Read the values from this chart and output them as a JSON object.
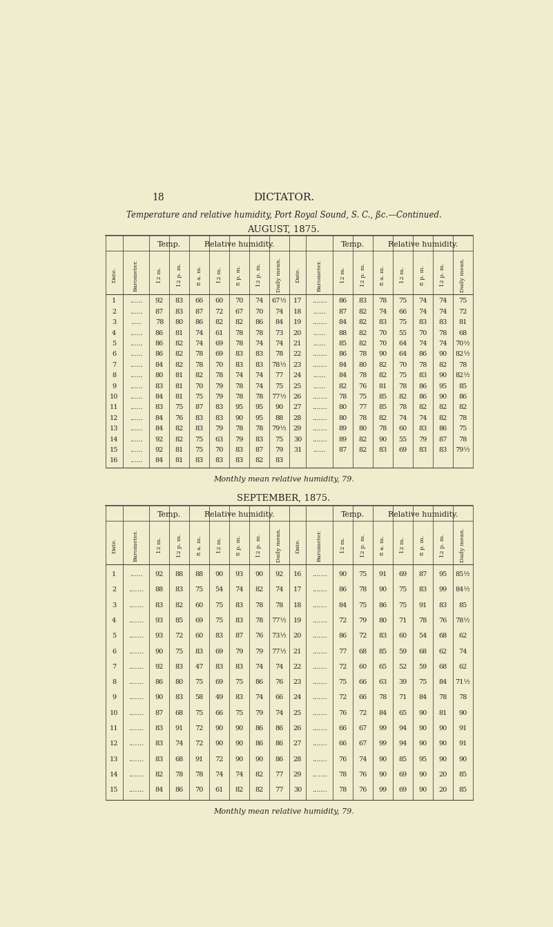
{
  "page_number": "18",
  "page_title": "DICTATOR.",
  "subtitle": "Temperature and relative humidity, Port Royal Sound, S. C., ßc.—Continued.",
  "section1_title": "AUGUST, 1875.",
  "section1_monthly_mean": "Monthly mean relative humidity, 79.",
  "section2_title": "SEPTEMBER, 1875.",
  "section2_monthly_mean": "Monthly mean relative humidity, 79.",
  "rot_headers": [
    "Date.",
    "Barometer.",
    "12 m.",
    "12 p. m.",
    "8 a. m.",
    "12 m.",
    "8 p. m.",
    "12 p. m.",
    "Daily mean."
  ],
  "aug_left": [
    [
      "1",
      "......",
      "92",
      "83",
      "66",
      "60",
      "70",
      "74",
      "67½"
    ],
    [
      "2",
      "......",
      "87",
      "83",
      "87",
      "72",
      "67",
      "70",
      "74"
    ],
    [
      "3",
      ".....",
      "78",
      "80",
      "86",
      "82",
      "82",
      "86",
      "84"
    ],
    [
      "4",
      "......",
      "86",
      "81",
      "74",
      "61",
      "78",
      "78",
      "73"
    ],
    [
      "5",
      "......",
      "86",
      "82",
      "74",
      "69",
      "78",
      "74",
      "74"
    ],
    [
      "6",
      "......",
      "86",
      "82",
      "78",
      "69",
      "83",
      "83",
      "78"
    ],
    [
      "7",
      "......",
      "84",
      "82",
      "78",
      "70",
      "83",
      "83",
      "78½"
    ],
    [
      "8",
      "......",
      "80",
      "81",
      "82",
      "78",
      "74",
      "74",
      "77"
    ],
    [
      "9",
      "......",
      "83",
      "81",
      "70",
      "79",
      "78",
      "74",
      "75"
    ],
    [
      "10",
      "......",
      "84",
      "81",
      "75",
      "79",
      "78",
      "78",
      "77½"
    ],
    [
      "11",
      "......",
      "83",
      "75",
      "87",
      "83",
      "95",
      "95",
      "90"
    ],
    [
      "12",
      "......",
      "84",
      "76",
      "83",
      "83",
      "90",
      "95",
      "88"
    ],
    [
      "13",
      "......",
      "84",
      "82",
      "83",
      "79",
      "78",
      "78",
      "79½"
    ],
    [
      "14",
      "......",
      "92",
      "82",
      "75",
      "63",
      "79",
      "83",
      "75"
    ],
    [
      "15",
      "......",
      "92",
      "81",
      "75",
      "70",
      "83",
      "87",
      "79"
    ],
    [
      "16",
      "......",
      "84",
      "81",
      "83",
      "83",
      "83",
      "82",
      "83"
    ]
  ],
  "aug_right": [
    [
      "17",
      ".......",
      "86",
      "83",
      "78",
      "75",
      "74",
      "74",
      "75"
    ],
    [
      "18",
      "......",
      "87",
      "82",
      "74",
      "66",
      "74",
      "74",
      "72"
    ],
    [
      "19",
      ".......",
      "84",
      "82",
      "83",
      "75",
      "83",
      "83",
      "81"
    ],
    [
      "20",
      "......",
      "88",
      "82",
      "70",
      "55",
      "70",
      "78",
      "68"
    ],
    [
      "21",
      "......",
      "85",
      "82",
      "70",
      "64",
      "74",
      "74",
      "70½"
    ],
    [
      "22",
      ".......",
      "86",
      "78",
      "90",
      "64",
      "86",
      "90",
      "82½"
    ],
    [
      "23",
      ".......",
      "84",
      "80",
      "82",
      "70",
      "78",
      "82",
      "78"
    ],
    [
      "24",
      "......",
      "84",
      "78",
      "82",
      "75",
      "83",
      "90",
      "82½"
    ],
    [
      "25",
      "......",
      "82",
      "76",
      "81",
      "78",
      "86",
      "95",
      "85"
    ],
    [
      "26",
      ".......",
      "78",
      "75",
      "85",
      "82",
      "86",
      "90",
      "86"
    ],
    [
      "27",
      ".......",
      "80",
      "77",
      "85",
      "78",
      "82",
      "82",
      "82"
    ],
    [
      "28",
      ".......",
      "80",
      "78",
      "82",
      "74",
      "74",
      "82",
      "78"
    ],
    [
      "29",
      ".......",
      "89",
      "80",
      "78",
      "60",
      "83",
      "86",
      "75"
    ],
    [
      "30",
      ".......",
      "89",
      "82",
      "90",
      "55",
      "79",
      "87",
      "78"
    ],
    [
      "31",
      "......",
      "87",
      "82",
      "83",
      "69",
      "83",
      "83",
      "79½"
    ]
  ],
  "sep_left": [
    [
      "1",
      "......",
      "92",
      "88",
      "88",
      "90",
      "93",
      "90",
      "92"
    ],
    [
      "2",
      ".......",
      "88",
      "83",
      "75",
      "54",
      "74",
      "82",
      "74"
    ],
    [
      "3",
      ".......",
      "83",
      "82",
      "60",
      "75",
      "83",
      "78",
      "78"
    ],
    [
      "4",
      ".......",
      "93",
      "85",
      "69",
      "75",
      "83",
      "78",
      "77½"
    ],
    [
      "5",
      ".......",
      "93",
      "72",
      "60",
      "83",
      "87",
      "76",
      "73½"
    ],
    [
      "6",
      ".......",
      "90",
      "75",
      "83",
      "69",
      "79",
      "79",
      "77½"
    ],
    [
      "7",
      ".......",
      "92",
      "83",
      "47",
      "83",
      "83",
      "74",
      "74"
    ],
    [
      "8",
      ".......",
      "86",
      "80",
      "75",
      "69",
      "75",
      "86",
      "76"
    ],
    [
      "9",
      ".......",
      "90",
      "83",
      "58",
      "49",
      "83",
      "74",
      "66"
    ],
    [
      "10",
      ".......",
      "87",
      "68",
      "75",
      "66",
      "75",
      "79",
      "74"
    ],
    [
      "11",
      ".......",
      "83",
      "91",
      "72",
      "90",
      "90",
      "86",
      "86"
    ],
    [
      "12",
      ".......",
      "83",
      "74",
      "72",
      "90",
      "90",
      "86",
      "86"
    ],
    [
      "13",
      ".......",
      "83",
      "68",
      "91",
      "72",
      "90",
      "90",
      "86"
    ],
    [
      "14",
      ".......",
      "82",
      "78",
      "78",
      "74",
      "74",
      "82",
      "77"
    ],
    [
      "15",
      ".......",
      "84",
      "86",
      "70",
      "61",
      "82",
      "82",
      "77"
    ]
  ],
  "sep_right": [
    [
      "16",
      ".......",
      "90",
      "75",
      "91",
      "69",
      "87",
      "95",
      "85½"
    ],
    [
      "17",
      ".......",
      "86",
      "78",
      "90",
      "75",
      "83",
      "99",
      "84½"
    ],
    [
      "18",
      ".......",
      "84",
      "75",
      "86",
      "75",
      "91",
      "83",
      "85"
    ],
    [
      "19",
      ".......",
      "72",
      "79",
      "80",
      "71",
      "78",
      "76",
      "78½"
    ],
    [
      "20",
      ".......",
      "86",
      "72",
      "83",
      "60",
      "54",
      "68",
      "62"
    ],
    [
      "21",
      ".......",
      "77",
      "68",
      "85",
      "59",
      "68",
      "62",
      "74"
    ],
    [
      "22",
      ".......",
      "72",
      "60",
      "65",
      "52",
      "59",
      "68",
      "62"
    ],
    [
      "23",
      ".......",
      "75",
      "66",
      "63",
      "39",
      "75",
      "84",
      "71½"
    ],
    [
      "24",
      ".......",
      "72",
      "66",
      "78",
      "71",
      "84",
      "78",
      "78"
    ],
    [
      "25",
      ".......",
      "76",
      "72",
      "84",
      "65",
      "90",
      "81",
      "90"
    ],
    [
      "26",
      ".......",
      "66",
      "67",
      "99",
      "94",
      "90",
      "90",
      "91"
    ],
    [
      "27",
      ".......",
      "66",
      "67",
      "99",
      "94",
      "90",
      "90",
      "91"
    ],
    [
      "28",
      ".......",
      "76",
      "74",
      "90",
      "85",
      "95",
      "90",
      "90"
    ],
    [
      "29",
      ".......",
      "78",
      "76",
      "90",
      "69",
      "90",
      "20",
      "85"
    ],
    [
      "30",
      ".......",
      "78",
      "76",
      "99",
      "69",
      "90",
      "20",
      "85"
    ]
  ],
  "bg_color": "#f0edce",
  "text_color": "#222222",
  "line_color": "#444444"
}
